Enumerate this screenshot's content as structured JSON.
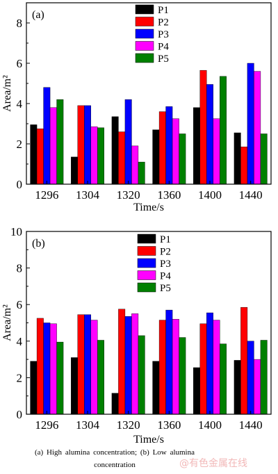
{
  "caption": "(a)  High  alumina  concentration;  (b)  Low  alumina concentration",
  "watermark": "@有色金属在线",
  "series_colors": [
    "#000000",
    "#ff0000",
    "#0000ff",
    "#ff00ff",
    "#008000"
  ],
  "chart_data": [
    {
      "type": "bar",
      "panel_label": "(a)",
      "categories": [
        "1296",
        "1304",
        "1320",
        "1360",
        "1400",
        "1440"
      ],
      "xlabel": "Time/s",
      "ylabel": "Area/m²",
      "ylim": [
        0,
        9
      ],
      "yticks": [
        0,
        2,
        4,
        6,
        8
      ],
      "legend": "top-center",
      "grid": false,
      "series": [
        {
          "name": "P1",
          "values": [
            2.95,
            1.35,
            3.35,
            2.7,
            3.8,
            2.55
          ]
        },
        {
          "name": "P2",
          "values": [
            2.75,
            3.9,
            2.6,
            3.6,
            5.65,
            1.85
          ]
        },
        {
          "name": "P3",
          "values": [
            4.8,
            3.9,
            4.2,
            3.85,
            4.95,
            6.0
          ]
        },
        {
          "name": "P4",
          "values": [
            3.8,
            2.85,
            1.9,
            3.25,
            3.25,
            5.6
          ]
        },
        {
          "name": "P5",
          "values": [
            4.2,
            2.8,
            1.1,
            2.5,
            5.35,
            2.5
          ]
        }
      ]
    },
    {
      "type": "bar",
      "panel_label": "(b)",
      "categories": [
        "1296",
        "1304",
        "1320",
        "1360",
        "1400",
        "1440"
      ],
      "xlabel": "Time/s",
      "ylabel": "Area/m²",
      "ylim": [
        0,
        10
      ],
      "yticks": [
        0,
        2,
        4,
        6,
        8,
        10
      ],
      "legend": "top-center",
      "grid": false,
      "series": [
        {
          "name": "P1",
          "values": [
            2.9,
            3.1,
            1.15,
            2.9,
            2.55,
            2.95
          ]
        },
        {
          "name": "P2",
          "values": [
            5.25,
            5.45,
            5.75,
            5.15,
            4.95,
            5.85
          ]
        },
        {
          "name": "P3",
          "values": [
            5.0,
            5.45,
            5.35,
            5.7,
            5.55,
            4.0
          ]
        },
        {
          "name": "P4",
          "values": [
            4.95,
            5.15,
            5.5,
            5.2,
            5.15,
            3.0
          ]
        },
        {
          "name": "P5",
          "values": [
            3.95,
            4.05,
            4.3,
            4.2,
            3.85,
            4.05
          ]
        }
      ]
    }
  ]
}
